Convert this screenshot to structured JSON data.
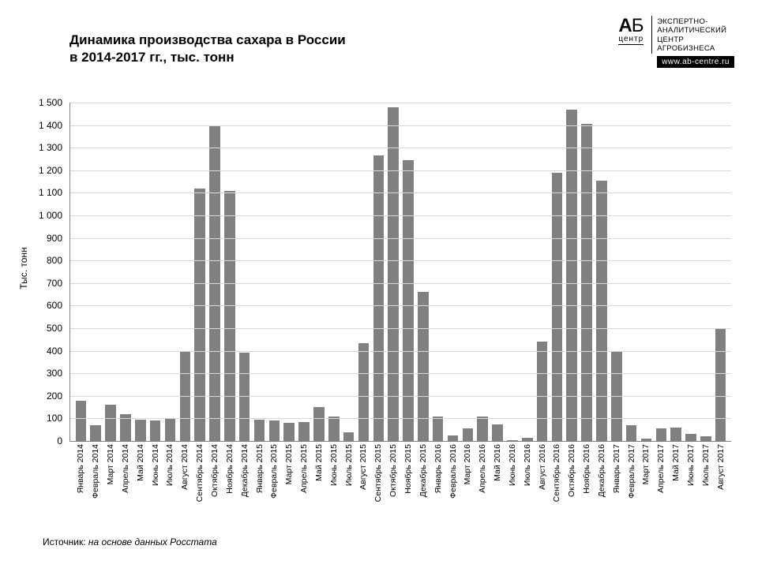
{
  "title_line1": "Динамика производства сахара в России",
  "title_line2": "в 2014-2017 гг., тыс. тонн",
  "logo": {
    "ab": "АБ",
    "centre": "центр",
    "line1": "ЭКСПЕРТНО-",
    "line2": "АНАЛИТИЧЕСКИЙ",
    "line3": "ЦЕНТР",
    "line4": "АГРОБИЗНЕСА",
    "url": "www.ab-centre.ru"
  },
  "chart": {
    "type": "bar",
    "ylabel": "Тыс. тонн",
    "ylim": [
      0,
      1500
    ],
    "ytick_step": 100,
    "bar_color": "#808080",
    "grid_color": "#d9d9d9",
    "background_color": "#ffffff",
    "axis_color": "#808080",
    "label_fontsize": 12,
    "xlabel_fontsize": 10.5,
    "bar_width_ratio": 0.72,
    "categories": [
      "Январь 2014",
      "Февраль 2014",
      "Март 2014",
      "Апрель 2014",
      "Май 2014",
      "Июнь 2014",
      "Июль 2014",
      "Август 2014",
      "Сентябрь 2014",
      "Октябрь 2014",
      "Ноябрь 2014",
      "Декабрь 2014",
      "Январь 2015",
      "Февраль 2015",
      "Март 2015",
      "Апрель 2015",
      "Май 2015",
      "Июнь 2015",
      "Июль 2015",
      "Август 2015",
      "Сентябрь 2015",
      "Октябрь 2015",
      "Ноябрь 2015",
      "Декабрь 2015",
      "Январь 2016",
      "Февраль 2016",
      "Март 2016",
      "Апрель 2016",
      "Май 2016",
      "Июнь 2016",
      "Июль 2016",
      "Август 2016",
      "Сентябрь 2016",
      "Октябрь 2016",
      "Ноябрь 2016",
      "Декабрь 2016",
      "Январь 2017",
      "Февраль 2017",
      "Март 2017",
      "Апрель 2017",
      "Май 2017",
      "Июнь 2017",
      "Июль 2017",
      "Август 2017"
    ],
    "values": [
      180,
      70,
      160,
      120,
      95,
      90,
      100,
      400,
      1120,
      1395,
      1110,
      390,
      95,
      90,
      80,
      85,
      150,
      110,
      40,
      435,
      1265,
      1480,
      1245,
      660,
      110,
      25,
      55,
      110,
      75,
      5,
      15,
      440,
      1190,
      1470,
      1405,
      1155,
      395,
      70,
      10,
      55,
      60,
      30,
      20,
      500
    ]
  },
  "source_label": "Источник: ",
  "source_text": "на основе данных Росстата"
}
